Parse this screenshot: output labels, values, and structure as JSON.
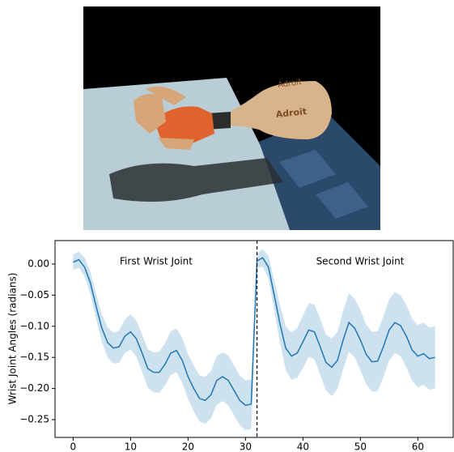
{
  "image": {
    "labels": [
      "Adroit",
      "Adroit"
    ]
  },
  "chart_data": {
    "type": "line",
    "ylabel": "Wrist Joint Angles (radians)",
    "annotations": [
      "First Wrist Joint",
      "Second Wrist Joint"
    ],
    "vline": 32,
    "x": [
      0,
      1,
      2,
      3,
      4,
      5,
      6,
      7,
      8,
      9,
      10,
      11,
      12,
      13,
      14,
      15,
      16,
      17,
      18,
      19,
      20,
      21,
      22,
      23,
      24,
      25,
      26,
      27,
      28,
      29,
      30,
      31,
      32,
      33,
      34,
      35,
      36,
      37,
      38,
      39,
      40,
      41,
      42,
      43,
      44,
      45,
      46,
      47,
      48,
      49,
      50,
      51,
      52,
      53,
      54,
      55,
      56,
      57,
      58,
      59,
      60,
      61,
      62,
      63
    ],
    "series": [
      {
        "color": "#1f77b4",
        "band_color": "#1f77b4",
        "values": [
          0.003,
          0.007,
          -0.005,
          -0.03,
          -0.068,
          -0.103,
          -0.126,
          -0.135,
          -0.133,
          -0.116,
          -0.109,
          -0.12,
          -0.143,
          -0.168,
          -0.174,
          -0.174,
          -0.161,
          -0.143,
          -0.139,
          -0.155,
          -0.181,
          -0.2,
          -0.216,
          -0.219,
          -0.21,
          -0.187,
          -0.181,
          -0.187,
          -0.203,
          -0.219,
          -0.227,
          -0.225,
          0.005,
          0.01,
          -0.005,
          -0.05,
          -0.096,
          -0.135,
          -0.148,
          -0.143,
          -0.125,
          -0.106,
          -0.109,
          -0.133,
          -0.158,
          -0.166,
          -0.155,
          -0.122,
          -0.094,
          -0.103,
          -0.122,
          -0.145,
          -0.157,
          -0.156,
          -0.133,
          -0.106,
          -0.094,
          -0.099,
          -0.116,
          -0.138,
          -0.148,
          -0.144,
          -0.152,
          -0.15
        ],
        "upper": [
          0.015,
          0.02,
          0.01,
          -0.012,
          -0.048,
          -0.081,
          -0.102,
          -0.11,
          -0.107,
          -0.089,
          -0.081,
          -0.091,
          -0.113,
          -0.137,
          -0.142,
          -0.141,
          -0.127,
          -0.108,
          -0.104,
          -0.119,
          -0.145,
          -0.163,
          -0.179,
          -0.181,
          -0.172,
          -0.148,
          -0.142,
          -0.147,
          -0.163,
          -0.179,
          -0.187,
          -0.185,
          0.017,
          0.024,
          0.013,
          -0.026,
          -0.066,
          -0.1,
          -0.11,
          -0.103,
          -0.083,
          -0.063,
          -0.065,
          -0.088,
          -0.113,
          -0.12,
          -0.109,
          -0.075,
          -0.047,
          -0.056,
          -0.074,
          -0.097,
          -0.109,
          -0.108,
          -0.084,
          -0.057,
          -0.045,
          -0.05,
          -0.066,
          -0.088,
          -0.098,
          -0.094,
          -0.102,
          -0.1
        ],
        "lower": [
          -0.009,
          -0.006,
          -0.02,
          -0.048,
          -0.088,
          -0.125,
          -0.15,
          -0.16,
          -0.159,
          -0.143,
          -0.137,
          -0.149,
          -0.173,
          -0.199,
          -0.206,
          -0.207,
          -0.195,
          -0.178,
          -0.174,
          -0.191,
          -0.217,
          -0.237,
          -0.253,
          -0.257,
          -0.248,
          -0.226,
          -0.22,
          -0.227,
          -0.243,
          -0.259,
          -0.267,
          -0.265,
          -0.007,
          -0.004,
          -0.023,
          -0.074,
          -0.126,
          -0.17,
          -0.186,
          -0.183,
          -0.167,
          -0.149,
          -0.153,
          -0.178,
          -0.203,
          -0.212,
          -0.201,
          -0.169,
          -0.141,
          -0.15,
          -0.17,
          -0.193,
          -0.205,
          -0.204,
          -0.182,
          -0.155,
          -0.143,
          -0.148,
          -0.166,
          -0.188,
          -0.198,
          -0.194,
          -0.202,
          -0.2
        ]
      }
    ],
    "xlim": [
      -3.15,
      66.15
    ],
    "ylim": [
      -0.2786,
      0.0377
    ],
    "xticks": [
      0,
      10,
      20,
      30,
      40,
      50,
      60
    ],
    "yticks": [
      {
        "value": 0,
        "label": "0.00"
      },
      {
        "value": -0.05,
        "label": "−0.05"
      },
      {
        "value": -0.1,
        "label": "−0.10"
      },
      {
        "value": -0.15,
        "label": "−0.15"
      },
      {
        "value": -0.2,
        "label": "−0.20"
      },
      {
        "value": -0.25,
        "label": "−0.25"
      }
    ]
  }
}
